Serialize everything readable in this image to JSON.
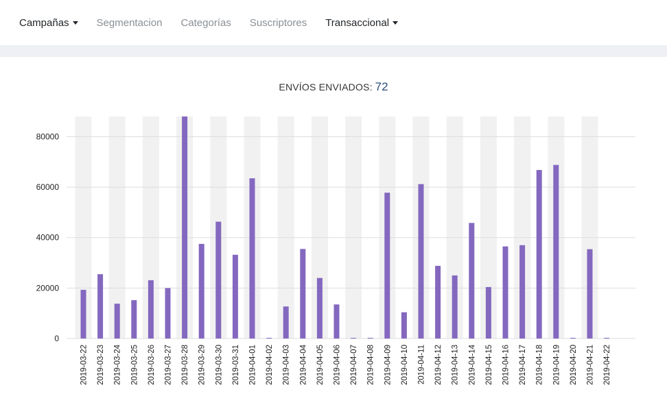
{
  "nav": {
    "items": [
      {
        "label": "Campañas",
        "dropdown": true,
        "style": "dark"
      },
      {
        "label": "Segmentacion",
        "dropdown": false,
        "style": "muted"
      },
      {
        "label": "Categorías",
        "dropdown": false,
        "style": "muted"
      },
      {
        "label": "Suscriptores",
        "dropdown": false,
        "style": "muted"
      },
      {
        "label": "Transaccional",
        "dropdown": true,
        "style": "dark"
      }
    ]
  },
  "summary": {
    "label": "ENVÍOS ENVIADOS:",
    "count": "72"
  },
  "colors": {
    "bar": "#8468bf",
    "stripe": "#f1f1f1",
    "grid": "#dddddd",
    "axis_text": "#222222"
  },
  "chart_data": {
    "type": "bar",
    "categories": [
      "2019-03-22",
      "2019-03-23",
      "2019-03-24",
      "2019-03-25",
      "2019-03-26",
      "2019-03-27",
      "2019-03-28",
      "2019-03-29",
      "2019-03-30",
      "2019-03-31",
      "2019-04-01",
      "2019-04-02",
      "2019-04-03",
      "2019-04-04",
      "2019-04-05",
      "2019-04-06",
      "2019-04-07",
      "2019-04-08",
      "2019-04-09",
      "2019-04-10",
      "2019-04-11",
      "2019-04-12",
      "2019-04-13",
      "2019-04-14",
      "2019-04-15",
      "2019-04-16",
      "2019-04-17",
      "2019-04-18",
      "2019-04-19",
      "2019-04-20",
      "2019-04-21",
      "2019-04-22"
    ],
    "values": [
      19300,
      25500,
      13800,
      15200,
      23100,
      20000,
      88000,
      37500,
      46300,
      33200,
      63500,
      0,
      12700,
      35500,
      24000,
      13500,
      0,
      0,
      57800,
      10400,
      61200,
      28800,
      25000,
      45800,
      20400,
      36500,
      37000,
      66800,
      68800,
      0,
      35400,
      0
    ],
    "yticks": [
      0,
      20000,
      40000,
      60000,
      80000
    ],
    "ylim": [
      0,
      88000
    ],
    "grid": true,
    "alternating_bands": true,
    "xlabel": "",
    "ylabel": ""
  }
}
